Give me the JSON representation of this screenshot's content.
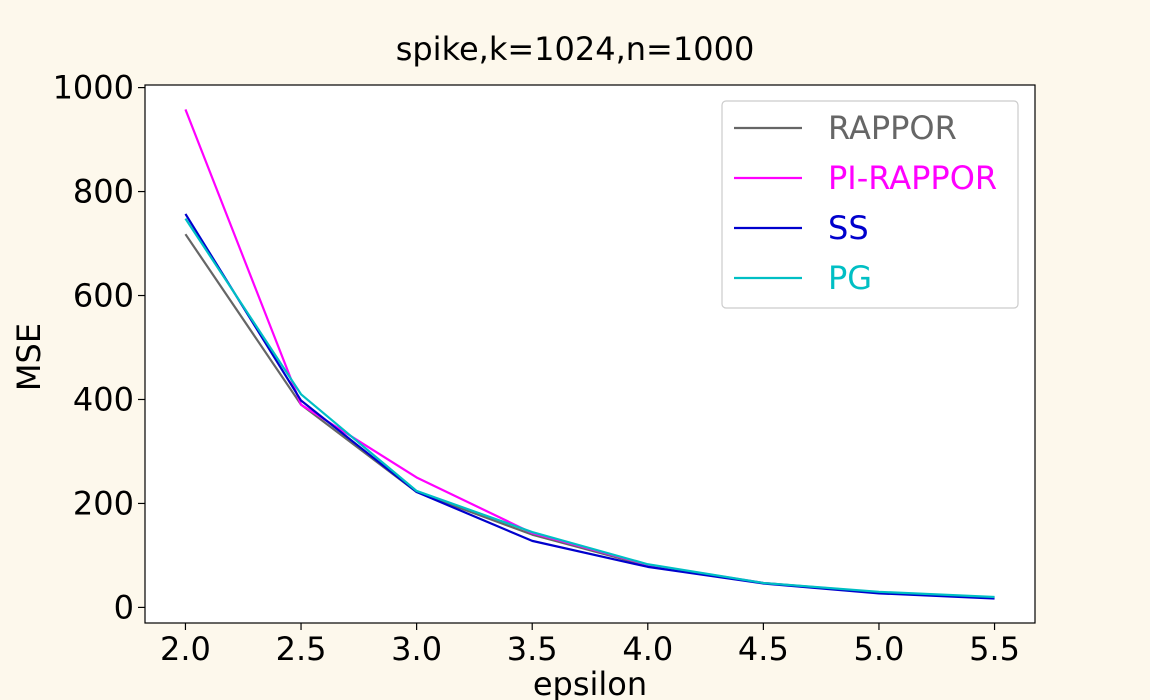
{
  "page": {
    "background": "#fdf8ec"
  },
  "chart_data": {
    "type": "line",
    "title": "spike,k=1024,n=1000",
    "xlabel": "epsilon",
    "ylabel": "MSE",
    "x": [
      2.0,
      2.5,
      3.0,
      3.5,
      4.0,
      4.5,
      5.0,
      5.5
    ],
    "xlim": [
      1.825,
      5.675
    ],
    "ylim": [
      -30,
      1005
    ],
    "x_ticks": [
      2.0,
      2.5,
      3.0,
      3.5,
      4.0,
      4.5,
      5.0,
      5.5
    ],
    "x_tick_labels": [
      "2.0",
      "2.5",
      "3.0",
      "3.5",
      "4.0",
      "4.5",
      "5.0",
      "5.5"
    ],
    "y_ticks": [
      0,
      200,
      400,
      600,
      800,
      1000
    ],
    "y_tick_labels": [
      "0",
      "200",
      "400",
      "600",
      "800",
      "1000"
    ],
    "grid": false,
    "legend_position": "top-right",
    "series": [
      {
        "name": "RAPPOR",
        "color": "#666666",
        "values": [
          718,
          390,
          222,
          140,
          80,
          47,
          29,
          19
        ]
      },
      {
        "name": "PI-RAPPOR",
        "color": "#ff00ff",
        "values": [
          958,
          390,
          250,
          143,
          82,
          47,
          28,
          18
        ]
      },
      {
        "name": "SS",
        "color": "#0000cd",
        "values": [
          757,
          398,
          222,
          128,
          78,
          46,
          27,
          17
        ]
      },
      {
        "name": "PG",
        "color": "#00bfc4",
        "values": [
          748,
          410,
          224,
          145,
          83,
          47,
          30,
          20
        ]
      }
    ]
  }
}
